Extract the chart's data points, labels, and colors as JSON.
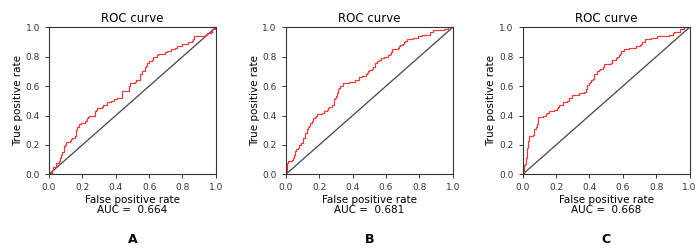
{
  "title": "ROC curve",
  "xlabel": "False positive rate",
  "ylabel": "True positive rate",
  "auc_labels": [
    "AUC =  0.664",
    "AUC =  0.681",
    "AUC =  0.668"
  ],
  "panel_labels": [
    "A",
    "B",
    "C"
  ],
  "roc_color": "#FF3333",
  "diag_color": "#444444",
  "tick_vals": [
    0.0,
    0.2,
    0.4,
    0.6,
    0.8,
    1.0
  ],
  "xlim": [
    0.0,
    1.0
  ],
  "ylim": [
    0.0,
    1.0
  ],
  "seeds": [
    42,
    77,
    13
  ],
  "aucs": [
    0.664,
    0.681,
    0.668
  ],
  "background_color": "#ffffff"
}
